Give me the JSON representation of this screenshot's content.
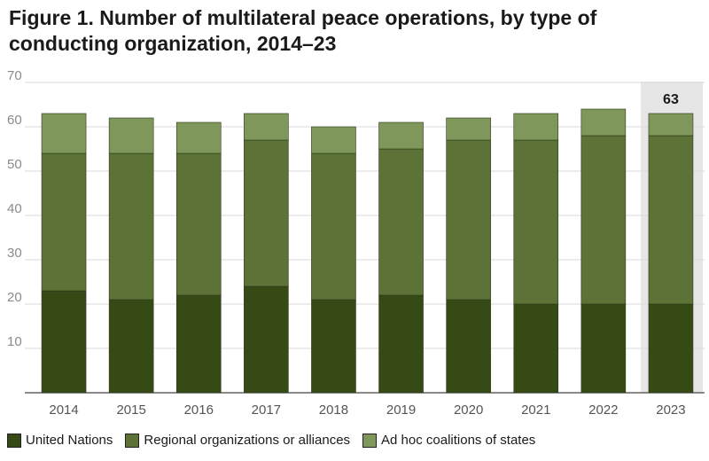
{
  "title": "Figure 1. Number of multilateral peace operations, by type of conducting organization, 2014–23",
  "chart_data": {
    "type": "bar",
    "stacked": true,
    "categories": [
      "2014",
      "2015",
      "2016",
      "2017",
      "2018",
      "2019",
      "2020",
      "2021",
      "2022",
      "2023"
    ],
    "series": [
      {
        "name": "United Nations",
        "color": "#364a16",
        "values": [
          23,
          21,
          22,
          24,
          21,
          22,
          21,
          20,
          20,
          20
        ]
      },
      {
        "name": "Regional organizations or alliances",
        "color": "#5c7236",
        "values": [
          31,
          33,
          32,
          33,
          33,
          33,
          36,
          37,
          38,
          38
        ]
      },
      {
        "name": "Ad hoc coalitions of states",
        "color": "#7f975a",
        "values": [
          9,
          8,
          7,
          6,
          6,
          6,
          5,
          6,
          6,
          5
        ]
      }
    ],
    "ylim": [
      0,
      70
    ],
    "yticks": [
      10,
      20,
      30,
      40,
      50,
      60,
      70
    ],
    "grid": true,
    "highlight": {
      "category": "2023",
      "label": "63"
    },
    "legend_position": "bottom"
  }
}
